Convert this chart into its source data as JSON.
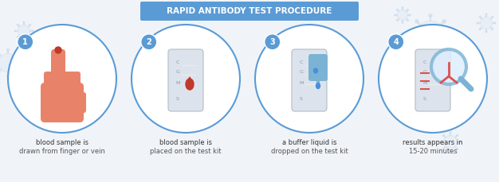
{
  "title": "RAPID ANTIBODY TEST PROCEDURE",
  "title_box_color": "#5b9bd5",
  "title_text_color": "#ffffff",
  "bg_color": "#f0f4f8",
  "bg_virus_color": "#c8d9ec",
  "circle_edge_color": "#5b9bd5",
  "circle_fill_color": "#ffffff",
  "number_bg_color": "#5b9bd5",
  "number_text_color": "#ffffff",
  "steps": [
    {
      "number": "1",
      "label_line1": "blood sample is",
      "label_line2": "drawn from finger or vein"
    },
    {
      "number": "2",
      "label_line1": "blood sample is",
      "label_line2": "placed on the test kit"
    },
    {
      "number": "3",
      "label_line1": "a buffer liquid is",
      "label_line2": "dropped on the test kit"
    },
    {
      "number": "4",
      "label_line1": "results appears in",
      "label_line2": "15-20 minutes"
    }
  ],
  "hand_color": "#e8836a",
  "finger_tip_color": "#c0392b",
  "blood_drop_color": "#c0392b",
  "kit_color": "#dde3ed",
  "kit_label_color": "#8899aa",
  "dropper_color": "#7ab3d4",
  "magnifier_color": "#7ab3d4",
  "antibody_color": "#e05050",
  "result_line_color": "#e05050"
}
